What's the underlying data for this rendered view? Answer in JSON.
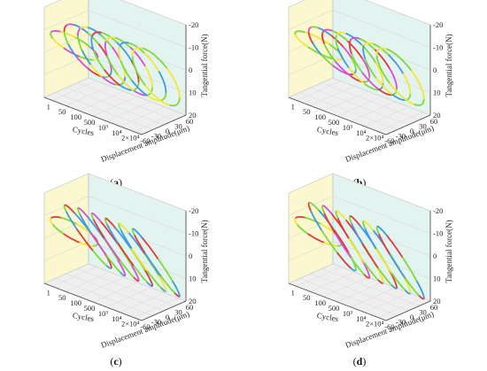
{
  "figure": {
    "panels": [
      {
        "id": "a",
        "caption_open": "(",
        "caption_letter": "a",
        "caption_close": ")"
      },
      {
        "id": "b",
        "caption_open": "(",
        "caption_letter": "b",
        "caption_close": ")"
      },
      {
        "id": "c",
        "caption_open": "(",
        "caption_letter": "c",
        "caption_close": ")"
      },
      {
        "id": "d",
        "caption_open": "(",
        "caption_letter": "d",
        "caption_close": ")"
      }
    ]
  },
  "chart_data": [
    {
      "type": "line",
      "panel": "a",
      "xlabel": "Cycles",
      "ylabel": "Displacement amplitude(μm)",
      "zlabel": "Tangential force(N)",
      "cycle_ticks": [
        "1",
        "50",
        "100",
        "500",
        "10³",
        "10⁴",
        "2×10⁴"
      ],
      "displacement_ticks": [
        -60,
        -30,
        0,
        30,
        60
      ],
      "force_ticks": [
        -20,
        -10,
        0,
        10,
        20
      ],
      "ylim": [
        -60,
        60
      ],
      "zlim": [
        20,
        -20
      ],
      "loops": [
        {
          "cycle": "1",
          "fmax": 10,
          "width": 0.25,
          "colors": [
            "#f5e633",
            "#7fd93a",
            "#d94cd9"
          ]
        },
        {
          "cycle": "50",
          "fmax": 15,
          "width": 0.35,
          "colors": [
            "#3f9be0",
            "#7fd93a",
            "#e03a3a",
            "#d94cd9"
          ]
        },
        {
          "cycle": "100",
          "fmax": 16,
          "width": 0.38,
          "colors": [
            "#3f9be0",
            "#7fd93a",
            "#d94cd9",
            "#f5e633"
          ]
        },
        {
          "cycle": "500",
          "fmax": 16,
          "width": 0.38,
          "colors": [
            "#7fd93a",
            "#3f9be0",
            "#e03a3a"
          ]
        },
        {
          "cycle": "10³",
          "fmax": 16,
          "width": 0.38,
          "colors": [
            "#7fd93a",
            "#d94cd9",
            "#f5e633"
          ]
        },
        {
          "cycle": "10⁴",
          "fmax": 16,
          "width": 0.38,
          "colors": [
            "#7fd93a",
            "#f5e633",
            "#3f9be0"
          ]
        },
        {
          "cycle": "2×10⁴",
          "fmax": 16,
          "width": 0.38,
          "colors": [
            "#7fd93a",
            "#f5e633"
          ]
        }
      ],
      "grid": true,
      "legend": "none"
    },
    {
      "type": "line",
      "panel": "b",
      "xlabel": "Cycles",
      "ylabel": "Displacement amplitude(μm)",
      "zlabel": "Tangential force(N)",
      "cycle_ticks": [
        "1",
        "50",
        "100",
        "500",
        "10³",
        "10⁴",
        "2×10⁴"
      ],
      "displacement_ticks": [
        -60,
        -30,
        0,
        30,
        60
      ],
      "force_ticks": [
        -20,
        -10,
        0,
        10,
        20
      ],
      "ylim": [
        -60,
        60
      ],
      "zlim": [
        20,
        -20
      ],
      "loops": [
        {
          "cycle": "1",
          "fmax": 10,
          "width": 0.22,
          "colors": [
            "#f5e633",
            "#7fd93a"
          ]
        },
        {
          "cycle": "50",
          "fmax": 14,
          "width": 0.3,
          "colors": [
            "#3f9be0",
            "#e03a3a",
            "#d94cd9",
            "#7fd93a"
          ]
        },
        {
          "cycle": "100",
          "fmax": 15,
          "width": 0.32,
          "colors": [
            "#7fd93a",
            "#e03a3a",
            "#d94cd9"
          ]
        },
        {
          "cycle": "500",
          "fmax": 16,
          "width": 0.34,
          "colors": [
            "#3f9be0",
            "#7fd93a",
            "#f5e633"
          ]
        },
        {
          "cycle": "10³",
          "fmax": 16,
          "width": 0.34,
          "colors": [
            "#7fd93a",
            "#e03a3a",
            "#d94cd9"
          ]
        },
        {
          "cycle": "10⁴",
          "fmax": 16,
          "width": 0.34,
          "colors": [
            "#7fd93a",
            "#3f9be0",
            "#f5e633"
          ]
        },
        {
          "cycle": "2×10⁴",
          "fmax": 16,
          "width": 0.34,
          "colors": [
            "#7fd93a",
            "#f5e633"
          ]
        }
      ],
      "grid": true,
      "legend": "none"
    },
    {
      "type": "line",
      "panel": "c",
      "xlabel": "Cycles",
      "ylabel": "Displacement amplitude(μm)",
      "zlabel": "Tangential force(N)",
      "cycle_ticks": [
        "1",
        "50",
        "100",
        "500",
        "10³",
        "10⁴",
        "2×10⁴"
      ],
      "displacement_ticks": [
        -60,
        -30,
        0,
        30,
        60
      ],
      "force_ticks": [
        -20,
        -10,
        0,
        10,
        20
      ],
      "ylim": [
        -60,
        60
      ],
      "zlim": [
        20,
        -20
      ],
      "loops": [
        {
          "cycle": "1",
          "fmax": 10,
          "width": 0.25,
          "colors": [
            "#7fd93a",
            "#f5e633",
            "#e03a3a"
          ]
        },
        {
          "cycle": "50",
          "fmax": 18,
          "width": 0.12,
          "colors": [
            "#3f9be0",
            "#7fd93a",
            "#e03a3a"
          ]
        },
        {
          "cycle": "100",
          "fmax": 19,
          "width": 0.1,
          "colors": [
            "#3f9be0",
            "#7fd93a",
            "#d94cd9"
          ]
        },
        {
          "cycle": "500",
          "fmax": 19,
          "width": 0.1,
          "colors": [
            "#e03a3a",
            "#7fd93a",
            "#d94cd9"
          ]
        },
        {
          "cycle": "10³",
          "fmax": 19,
          "width": 0.1,
          "colors": [
            "#3f9be0",
            "#7fd93a",
            "#e03a3a"
          ]
        },
        {
          "cycle": "10⁴",
          "fmax": 19,
          "width": 0.1,
          "colors": [
            "#3f9be0",
            "#7fd93a",
            "#f5e633"
          ]
        },
        {
          "cycle": "2×10⁴",
          "fmax": 19,
          "width": 0.1,
          "colors": [
            "#e03a3a",
            "#7fd93a",
            "#3f9be0"
          ]
        }
      ],
      "grid": true,
      "legend": "none"
    },
    {
      "type": "line",
      "panel": "d",
      "xlabel": "Cycles",
      "ylabel": "Displacement amplitude(μm)",
      "zlabel": "Tangential force(N)",
      "cycle_ticks": [
        "1",
        "50",
        "100",
        "500",
        "10³",
        "10⁴",
        "2×10⁴"
      ],
      "displacement_ticks": [
        -60,
        -30,
        0,
        30,
        60
      ],
      "force_ticks": [
        -20,
        -10,
        0,
        10,
        20
      ],
      "ylim": [
        -60,
        60
      ],
      "zlim": [
        20,
        -20
      ],
      "loops": [
        {
          "cycle": "1",
          "fmax": 10,
          "width": 0.25,
          "colors": [
            "#7fd93a",
            "#f5e633",
            "#e03a3a"
          ]
        },
        {
          "cycle": "50",
          "fmax": 19,
          "width": 0.14,
          "colors": [
            "#3f9be0",
            "#e03a3a",
            "#7fd93a"
          ]
        },
        {
          "cycle": "100",
          "fmax": 20,
          "width": 0.12,
          "colors": [
            "#e03a3a",
            "#7fd93a",
            "#d94cd9"
          ]
        },
        {
          "cycle": "500",
          "fmax": 20,
          "width": 0.12,
          "colors": [
            "#e03a3a",
            "#7fd93a",
            "#f5e633"
          ]
        },
        {
          "cycle": "10³",
          "fmax": 20,
          "width": 0.12,
          "colors": [
            "#3f9be0",
            "#7fd93a",
            "#e03a3a"
          ]
        },
        {
          "cycle": "10⁴",
          "fmax": 20,
          "width": 0.12,
          "colors": [
            "#3f9be0",
            "#7fd93a",
            "#f5e633"
          ]
        },
        {
          "cycle": "2×10⁴",
          "fmax": 20,
          "width": 0.12,
          "colors": [
            "#e03a3a",
            "#7fd93a",
            "#3f9be0"
          ]
        }
      ],
      "grid": true,
      "legend": "none"
    }
  ]
}
